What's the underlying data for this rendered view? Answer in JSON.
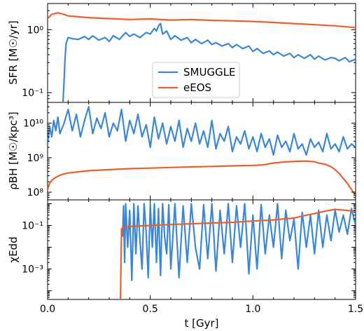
{
  "chart_data": [
    {
      "type": "line",
      "panel": "top",
      "ylabel": "SFR [M☉/yr]",
      "yscale": "log",
      "ylim": [
        0.07,
        2.6
      ],
      "yticks": [
        {
          "v": 0.1,
          "label": "10⁻¹"
        },
        {
          "v": 1,
          "label": "10⁰"
        }
      ],
      "xlim": [
        0.0,
        1.5
      ],
      "grid": false,
      "legend": {
        "position": "center",
        "entries": [
          "SMUGGLE",
          "eEOS"
        ]
      },
      "series": [
        {
          "name": "SMUGGLE",
          "x": [
            0.075,
            0.08,
            0.085,
            0.09,
            0.1,
            0.12,
            0.15,
            0.18,
            0.2,
            0.22,
            0.25,
            0.28,
            0.3,
            0.32,
            0.35,
            0.38,
            0.4,
            0.42,
            0.45,
            0.48,
            0.5,
            0.52,
            0.53,
            0.54,
            0.55,
            0.56,
            0.58,
            0.6,
            0.62,
            0.65,
            0.68,
            0.7,
            0.72,
            0.75,
            0.78,
            0.8,
            0.82,
            0.85,
            0.88,
            0.9,
            0.92,
            0.95,
            0.98,
            1.0,
            1.02,
            1.05,
            1.08,
            1.1,
            1.12,
            1.15,
            1.18,
            1.2,
            1.22,
            1.25,
            1.28,
            1.3,
            1.32,
            1.35,
            1.38,
            1.4,
            1.42,
            1.45,
            1.47,
            1.5
          ],
          "values": [
            0.07,
            0.15,
            0.35,
            0.6,
            0.75,
            0.72,
            0.7,
            0.78,
            0.7,
            0.8,
            0.68,
            0.75,
            0.65,
            0.8,
            0.7,
            0.9,
            0.78,
            0.85,
            0.75,
            0.9,
            0.85,
            1.05,
            0.95,
            1.15,
            1.25,
            0.85,
            0.95,
            0.7,
            0.8,
            0.68,
            0.75,
            0.62,
            0.7,
            0.6,
            0.68,
            0.58,
            0.62,
            0.55,
            0.6,
            0.52,
            0.58,
            0.5,
            0.55,
            0.45,
            0.5,
            0.42,
            0.46,
            0.4,
            0.44,
            0.38,
            0.42,
            0.36,
            0.4,
            0.35,
            0.4,
            0.34,
            0.38,
            0.33,
            0.36,
            0.35,
            0.32,
            0.36,
            0.31,
            0.34
          ]
        },
        {
          "name": "eEOS",
          "x": [
            0.0,
            0.02,
            0.05,
            0.08,
            0.1,
            0.15,
            0.2,
            0.3,
            0.4,
            0.5,
            0.6,
            0.7,
            0.8,
            0.9,
            1.0,
            1.1,
            1.2,
            1.3,
            1.4,
            1.5
          ],
          "values": [
            1.5,
            1.75,
            1.85,
            1.75,
            1.65,
            1.6,
            1.55,
            1.5,
            1.45,
            1.48,
            1.42,
            1.45,
            1.4,
            1.38,
            1.35,
            1.3,
            1.25,
            1.2,
            1.15,
            1.08
          ]
        }
      ]
    },
    {
      "type": "line",
      "panel": "middle",
      "ylabel": "ρBH [M☉/kpc³]",
      "yscale": "log",
      "ylim": [
        60000000.0,
        40000000000.0
      ],
      "yticks": [
        {
          "v": 100000000,
          "label": "10⁸"
        },
        {
          "v": 1000000000,
          "label": "10⁹"
        },
        {
          "v": 10000000000,
          "label": "10¹⁰"
        }
      ],
      "xlim": [
        0.0,
        1.5
      ],
      "grid": false,
      "series": [
        {
          "name": "SMUGGLE",
          "x": [
            0.0,
            0.01,
            0.02,
            0.03,
            0.04,
            0.05,
            0.06,
            0.08,
            0.1,
            0.12,
            0.14,
            0.16,
            0.18,
            0.2,
            0.22,
            0.24,
            0.26,
            0.28,
            0.3,
            0.32,
            0.34,
            0.36,
            0.38,
            0.4,
            0.42,
            0.44,
            0.46,
            0.48,
            0.5,
            0.52,
            0.54,
            0.56,
            0.58,
            0.6,
            0.62,
            0.64,
            0.66,
            0.68,
            0.7,
            0.72,
            0.74,
            0.76,
            0.78,
            0.8,
            0.82,
            0.84,
            0.86,
            0.88,
            0.9,
            0.92,
            0.94,
            0.96,
            0.98,
            1.0,
            1.02,
            1.04,
            1.06,
            1.08,
            1.1,
            1.12,
            1.14,
            1.16,
            1.18,
            1.2,
            1.22,
            1.24,
            1.26,
            1.28,
            1.3,
            1.32,
            1.34,
            1.36,
            1.38,
            1.4,
            1.42,
            1.44,
            1.46,
            1.48,
            1.5
          ],
          "values": [
            2500000000,
            8000000000,
            4000000000,
            12000000000,
            6000000000,
            15000000000,
            5000000000,
            10000000000,
            25000000000,
            6000000000,
            18000000000,
            4000000000,
            12000000000,
            30000000000,
            5000000000,
            14000000000,
            7000000000,
            20000000000,
            4000000000,
            10000000000,
            6000000000,
            25000000000,
            3000000000,
            12000000000,
            5000000000,
            18000000000,
            4000000000,
            9000000000,
            2000000000,
            15000000000,
            3500000000,
            10000000000,
            2500000000,
            8000000000,
            3000000000,
            12000000000,
            2000000000,
            7000000000,
            3000000000,
            10000000000,
            2500000000,
            6000000000,
            2000000000,
            12000000000,
            1800000000,
            5000000000,
            3000000000,
            8000000000,
            1500000000,
            4000000000,
            2500000000,
            6000000000,
            1800000000,
            4000000000,
            1500000000,
            5000000000,
            2000000000,
            3500000000,
            1200000000,
            4500000000,
            2000000000,
            3000000000,
            1500000000,
            5000000000,
            1800000000,
            2500000000,
            1200000000,
            3500000000,
            2000000000,
            2800000000,
            1500000000,
            5000000000,
            1800000000,
            2500000000,
            1500000000,
            4000000000,
            1800000000,
            2500000000,
            2000000000
          ]
        },
        {
          "name": "eEOS",
          "x": [
            0.0,
            0.01,
            0.02,
            0.04,
            0.06,
            0.08,
            0.1,
            0.15,
            0.2,
            0.3,
            0.4,
            0.5,
            0.6,
            0.7,
            0.8,
            0.9,
            1.0,
            1.05,
            1.1,
            1.15,
            1.2,
            1.25,
            1.28,
            1.3,
            1.32,
            1.35,
            1.38,
            1.4,
            1.42,
            1.44,
            1.46,
            1.48,
            1.5
          ],
          "values": [
            120000000,
            180000000,
            220000000,
            270000000,
            310000000,
            340000000,
            360000000,
            390000000,
            420000000,
            450000000,
            480000000,
            500000000,
            520000000,
            540000000,
            560000000,
            580000000,
            600000000,
            620000000,
            700000000,
            750000000,
            780000000,
            800000000,
            780000000,
            760000000,
            700000000,
            650000000,
            550000000,
            450000000,
            350000000,
            250000000,
            180000000,
            120000000,
            80000000
          ]
        }
      ]
    },
    {
      "type": "line",
      "panel": "bottom",
      "ylabel": "χEdd",
      "xlabel": "t [Gyr]",
      "yscale": "log",
      "ylim": [
        4e-05,
        1.5
      ],
      "yticks": [
        {
          "v": 0.001,
          "label": "10⁻³"
        },
        {
          "v": 0.1,
          "label": "10⁻¹"
        }
      ],
      "xlim": [
        0.0,
        1.5
      ],
      "xticks": [
        {
          "v": 0.0,
          "label": "0.0"
        },
        {
          "v": 0.5,
          "label": "0.5"
        },
        {
          "v": 1.0,
          "label": "1.0"
        },
        {
          "v": 1.5,
          "label": "1.5"
        }
      ],
      "grid": false,
      "series": [
        {
          "name": "SMUGGLE",
          "x": [
            0.365,
            0.37,
            0.375,
            0.38,
            0.39,
            0.4,
            0.41,
            0.42,
            0.43,
            0.44,
            0.45,
            0.46,
            0.47,
            0.48,
            0.49,
            0.5,
            0.51,
            0.52,
            0.53,
            0.54,
            0.55,
            0.56,
            0.57,
            0.58,
            0.59,
            0.6,
            0.62,
            0.64,
            0.66,
            0.68,
            0.7,
            0.72,
            0.74,
            0.76,
            0.78,
            0.8,
            0.82,
            0.84,
            0.86,
            0.88,
            0.9,
            0.92,
            0.94,
            0.96,
            0.98,
            1.0,
            1.02,
            1.04,
            1.06,
            1.08,
            1.1,
            1.12,
            1.14,
            1.16,
            1.18,
            1.2,
            1.22,
            1.24,
            1.26,
            1.28,
            1.3,
            1.32,
            1.34,
            1.36,
            1.38,
            1.4,
            1.42,
            1.44,
            1.46,
            1.48,
            1.5
          ],
          "values": [
            0.03,
            0.8,
            0.002,
            1.0,
            0.01,
            0.5,
            0.0003,
            1.0,
            0.005,
            0.8,
            0.02,
            0.001,
            1.0,
            0.05,
            0.0004,
            0.9,
            0.01,
            1.0,
            0.002,
            0.6,
            0.0005,
            1.0,
            0.03,
            0.005,
            0.9,
            0.001,
            1.0,
            0.0004,
            0.8,
            0.002,
            1.0,
            0.01,
            0.001,
            0.9,
            0.003,
            1.0,
            0.0008,
            0.5,
            0.005,
            1.0,
            0.002,
            0.8,
            0.01,
            1.0,
            0.0006,
            0.3,
            0.001,
            0.9,
            0.005,
            0.3,
            0.01,
            1.0,
            0.003,
            0.5,
            0.02,
            0.2,
            0.001,
            0.4,
            0.01,
            0.3,
            0.005,
            0.5,
            0.01,
            0.3,
            0.02,
            0.5,
            0.05,
            0.3,
            0.04,
            0.6,
            0.1
          ]
        },
        {
          "name": "eEOS",
          "x": [
            0.355,
            0.36,
            0.37,
            0.4,
            0.5,
            0.6,
            0.7,
            0.8,
            0.9,
            1.0,
            1.1,
            1.2,
            1.25,
            1.3,
            1.35,
            1.4,
            1.45,
            1.5
          ],
          "values": [
            4e-05,
            0.07,
            0.085,
            0.09,
            0.1,
            0.11,
            0.12,
            0.13,
            0.14,
            0.16,
            0.18,
            0.22,
            0.28,
            0.35,
            0.45,
            0.55,
            0.5,
            0.45
          ]
        }
      ]
    }
  ],
  "colors": {
    "SMUGGLE": "#3a86d9",
    "eEOS": "#e8602c"
  }
}
